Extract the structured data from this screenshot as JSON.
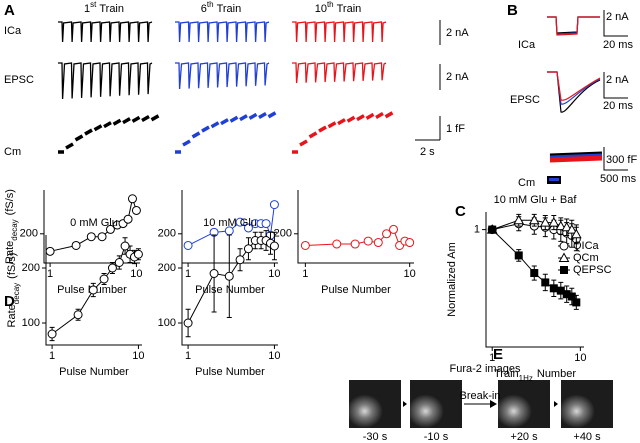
{
  "panel_labels": [
    "A",
    "B",
    "C",
    "D",
    "E"
  ],
  "panel_a": {
    "columns": [
      {
        "number": "1",
        "suffix": "st",
        "title": "Train",
        "color": "#000000"
      },
      {
        "number": "6",
        "suffix": "th",
        "title": "Train",
        "color": "#1f3fd6"
      },
      {
        "number": "10",
        "suffix": "th",
        "title": "Train",
        "color": "#e8141b"
      }
    ],
    "rows": [
      "ICa",
      "EPSC",
      "Cm"
    ],
    "scale_bars": [
      "2 nA",
      "2 nA",
      "1 fF",
      "2 s"
    ]
  },
  "panel_b": {
    "rows": [
      "ICa",
      "EPSC",
      "Cm"
    ],
    "scale_bars": [
      "2 nA",
      "20 ms",
      "2 nA",
      "20 ms",
      "300 fF",
      "500 ms"
    ]
  },
  "panel_e": {
    "title": "Fura-2 images",
    "arrow_label": "Break-in",
    "times": [
      "-30 s",
      "-10 s",
      "+20 s",
      "+40 s"
    ]
  },
  "chart_data": [
    {
      "type": "line",
      "xscale": "log",
      "xlim": [
        0.85,
        11
      ],
      "xticks": [
        1,
        10
      ],
      "ylim": [
        100,
        350
      ],
      "yticks": [
        200
      ],
      "ylabel": {
        "text": "Rate",
        "sub": "decay",
        "rest": "(fS/s)"
      },
      "xlabel": "Pulse Number",
      "x": [
        1,
        2,
        3,
        4,
        5,
        6,
        7,
        8,
        9,
        10
      ],
      "series": [
        {
          "color": "#000000",
          "marker": "circle-open",
          "values": [
            140,
            160,
            190,
            190,
            215,
            230,
            235,
            250,
            320,
            280
          ]
        }
      ]
    },
    {
      "type": "line",
      "xscale": "log",
      "xlim": [
        0.85,
        11
      ],
      "xticks": [
        1,
        10
      ],
      "ylim": [
        100,
        350
      ],
      "yticks": [
        200
      ],
      "xlabel": "Pulse Number",
      "x": [
        1,
        2,
        3,
        4,
        5,
        6,
        7,
        8,
        9,
        10
      ],
      "series": [
        {
          "color": "#1f3fd6",
          "marker": "circle-open",
          "values": [
            160,
            205,
            210,
            240,
            220,
            235,
            235,
            235,
            195,
            300
          ]
        }
      ]
    },
    {
      "type": "line",
      "xscale": "log",
      "xlim": [
        0.85,
        11
      ],
      "xticks": [
        1,
        10
      ],
      "ylim": [
        100,
        350
      ],
      "yticks": [
        200
      ],
      "xlabel": "Pulse Number",
      "x": [
        1,
        2,
        3,
        4,
        5,
        6,
        7,
        8,
        9,
        10
      ],
      "series": [
        {
          "color": "#e8141b",
          "marker": "circle-open",
          "values": [
            160,
            165,
            165,
            175,
            170,
            200,
            215,
            160,
            175,
            170
          ]
        }
      ]
    },
    {
      "type": "line",
      "title": "10 mM Glu + Baf",
      "xscale": "log",
      "xlim": [
        0.85,
        11
      ],
      "xticks": [
        1,
        10
      ],
      "ylim": [
        0,
        1.15
      ],
      "yticks": [
        1
      ],
      "ylabel": "Normalized Am",
      "xlabel": {
        "text": "Train",
        "sub": "1Hz",
        "rest": "Number"
      },
      "legend": "right",
      "x": [
        1,
        2,
        3,
        4,
        5,
        6,
        7,
        8,
        9
      ],
      "series": [
        {
          "name": "QICa",
          "color": "#000000",
          "marker": "circle-open",
          "values": [
            1,
            1.05,
            1.03,
            1.02,
            1.0,
            0.99,
            0.97,
            0.95,
            0.92
          ],
          "errors": [
            0,
            0.06,
            0.07,
            0.08,
            0.08,
            0.09,
            0.09,
            0.1,
            0.1
          ]
        },
        {
          "name": "QCm",
          "color": "#000000",
          "marker": "triangle-open",
          "values": [
            1,
            1.08,
            1.08,
            1.06,
            1.06,
            1.03,
            1.02,
            1.0,
            0.96
          ],
          "errors": [
            0,
            0.05,
            0.05,
            0.06,
            0.06,
            0.07,
            0.07,
            0.08,
            0.08
          ]
        },
        {
          "name": "QEPSC",
          "color": "#000000",
          "marker": "square-filled",
          "values": [
            1,
            0.78,
            0.63,
            0.55,
            0.5,
            0.48,
            0.45,
            0.43,
            0.38
          ],
          "errors": [
            0,
            0.05,
            0.06,
            0.07,
            0.07,
            0.07,
            0.07,
            0.07,
            0.06
          ]
        }
      ]
    },
    {
      "type": "line",
      "title": "0 mM Glu",
      "xscale": "log",
      "xlim": [
        0.85,
        11
      ],
      "xticks": [
        1,
        10
      ],
      "ylim": [
        60,
        260
      ],
      "yticks": [
        100,
        200
      ],
      "ylabel": {
        "text": "Rate",
        "sub": "decay",
        "rest": "(fS/s)"
      },
      "xlabel": "Pulse Number",
      "x": [
        1,
        2,
        3,
        4,
        5,
        6,
        7,
        8,
        9,
        10
      ],
      "series": [
        {
          "color": "#000000",
          "marker": "circle-open",
          "values": [
            80,
            115,
            160,
            180,
            200,
            210,
            240,
            225,
            220,
            225
          ],
          "errors": [
            12,
            10,
            12,
            10,
            10,
            12,
            15,
            15,
            12,
            10
          ]
        }
      ]
    },
    {
      "type": "line",
      "title": "10 mM Glu",
      "xscale": "log",
      "xlim": [
        0.85,
        11
      ],
      "xticks": [
        1,
        10
      ],
      "ylim": [
        60,
        260
      ],
      "yticks": [
        100,
        200
      ],
      "xlabel": "Pulse Number",
      "x": [
        1,
        2,
        3,
        4,
        5,
        6,
        7,
        8,
        9,
        10
      ],
      "series": [
        {
          "color": "#000000",
          "marker": "circle-open",
          "values": [
            100,
            190,
            185,
            215,
            235,
            250,
            250,
            250,
            245,
            240
          ],
          "errors": [
            25,
            70,
            75,
            20,
            20,
            15,
            15,
            18,
            20,
            25
          ]
        }
      ]
    }
  ]
}
